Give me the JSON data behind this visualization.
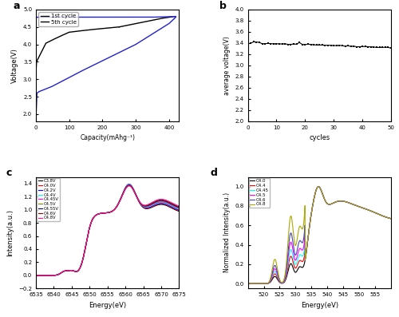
{
  "panel_a": {
    "xlabel": "Capacity(mAhg⁻¹)",
    "ylabel": "Voltage(V)",
    "ylim": [
      1.8,
      5.0
    ],
    "xlim": [
      0,
      430
    ],
    "xticks": [
      0,
      100,
      200,
      300,
      400
    ],
    "yticks": [
      2.0,
      2.5,
      3.0,
      3.5,
      4.0,
      4.5,
      5.0
    ],
    "legend": [
      "1st cycle",
      "5th cycle"
    ],
    "colors": [
      "black",
      "#2222cc"
    ]
  },
  "panel_b": {
    "xlabel": "cycles",
    "ylabel": "average voltage(V)",
    "ylim": [
      2.0,
      4.0
    ],
    "xlim": [
      0,
      50
    ],
    "xticks": [
      0,
      10,
      20,
      30,
      40,
      50
    ],
    "yticks": [
      2.0,
      2.2,
      2.4,
      2.6,
      2.8,
      3.0,
      3.2,
      3.4,
      3.6,
      3.8,
      4.0
    ]
  },
  "panel_c": {
    "xlabel": "Energy(eV)",
    "ylabel": "Intensity(a.u.)",
    "xlim": [
      6535,
      6575
    ],
    "ylim": [
      -0.2,
      1.5
    ],
    "xticks": [
      6535,
      6540,
      6545,
      6550,
      6555,
      6560,
      6565,
      6570,
      6575
    ],
    "labels": [
      "C3.8V",
      "C4.0V",
      "C4.2V",
      "C4.4V",
      "C4.45V",
      "C4.5V",
      "C4.55V",
      "C4.6V",
      "C4.8V"
    ],
    "colors": [
      "black",
      "red",
      "blue",
      "cyan",
      "magenta",
      "#808000",
      "navy",
      "darkred",
      "deeppink"
    ]
  },
  "panel_d": {
    "xlabel": "Energy(eV)",
    "ylabel": "Normalized Intensity(a.u.)",
    "xlim": [
      515,
      560
    ],
    "ylim": [
      -0.05,
      1.1
    ],
    "xticks": [
      520,
      525,
      530,
      535,
      540,
      545,
      550,
      555
    ],
    "labels": [
      "C4.0",
      "C4.4",
      "C4.45",
      "C4.5",
      "C4.6",
      "C4.8"
    ],
    "colors": [
      "black",
      "red",
      "cyan",
      "magenta",
      "#4444bb",
      "#aaaa00"
    ]
  }
}
